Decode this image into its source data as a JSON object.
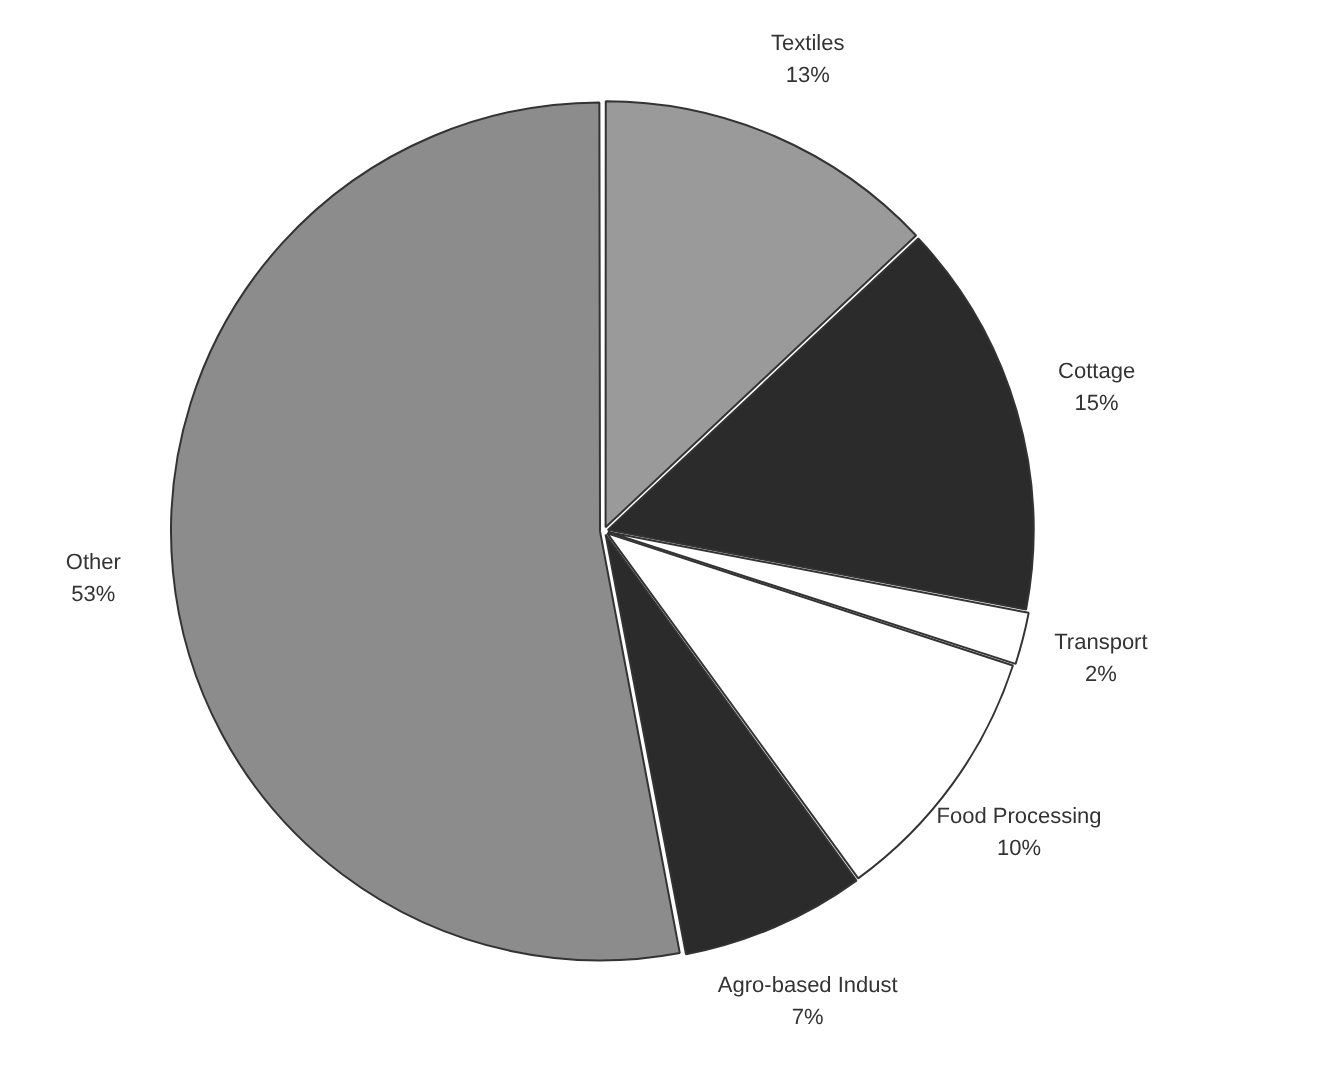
{
  "chart_data": {
    "type": "pie",
    "categories": [
      "Textiles",
      "Cottage",
      "Transport",
      "Food Processing",
      "Agro-based Indust",
      "Other"
    ],
    "values": [
      13,
      15,
      2,
      10,
      7,
      53
    ],
    "value_labels": [
      "13%",
      "15%",
      "2%",
      "10%",
      "7%",
      "53%"
    ],
    "colors": [
      "#9a9a9a",
      "#2b2b2b",
      "#ffffff",
      "#ffffff",
      "#2b2b2b",
      "#8c8c8c"
    ],
    "legend": false
  }
}
